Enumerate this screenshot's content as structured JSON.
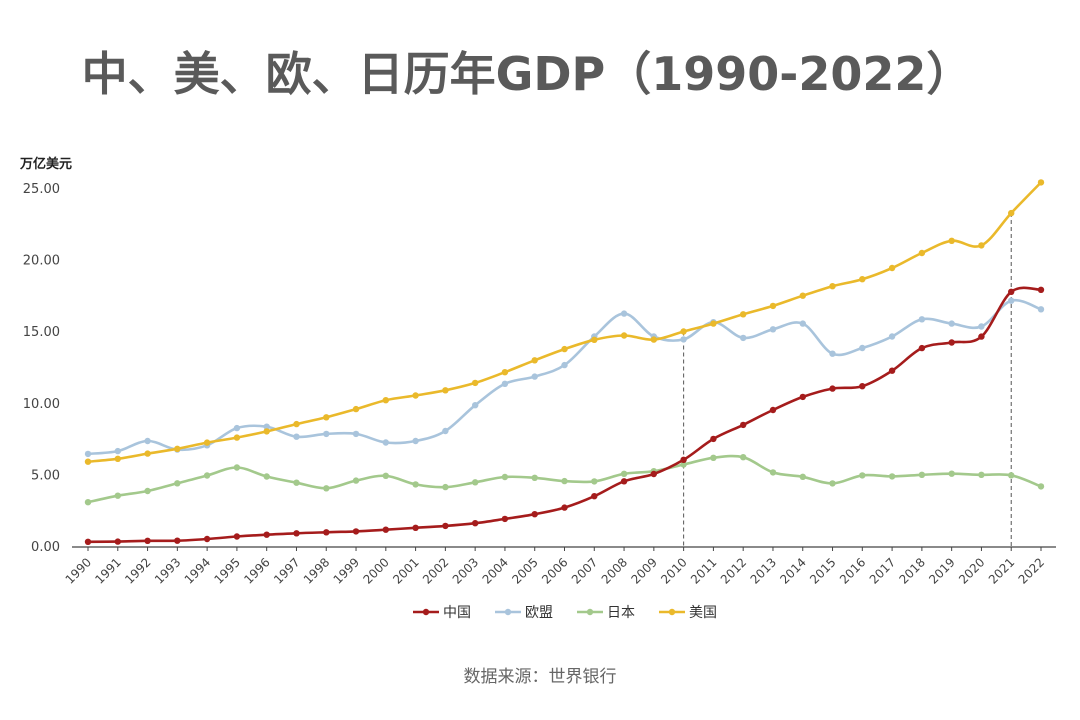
{
  "chart_data": {
    "type": "line",
    "title": "中、美、欧、日历年GDP（1990-2022）",
    "ylabel": "万亿美元",
    "xlabel": "",
    "ylim": [
      0,
      25
    ],
    "yticks": [
      "0.00",
      "5.00",
      "10.00",
      "15.00",
      "20.00",
      "25.00"
    ],
    "grid": false,
    "legend_position": "bottom",
    "source": "数据来源：世界银行",
    "reference_lines": [
      "2010",
      "2021"
    ],
    "categories": [
      "1990",
      "1991",
      "1992",
      "1993",
      "1994",
      "1995",
      "1996",
      "1997",
      "1998",
      "1999",
      "2000",
      "2001",
      "2002",
      "2003",
      "2004",
      "2005",
      "2006",
      "2007",
      "2008",
      "2009",
      "2010",
      "2011",
      "2012",
      "2013",
      "2014",
      "2015",
      "2016",
      "2017",
      "2018",
      "2019",
      "2020",
      "2021",
      "2022"
    ],
    "series": [
      {
        "name": "中国",
        "color": "#a51c1c",
        "values": [
          0.36,
          0.38,
          0.43,
          0.44,
          0.56,
          0.73,
          0.86,
          0.96,
          1.03,
          1.09,
          1.21,
          1.34,
          1.47,
          1.66,
          1.96,
          2.29,
          2.75,
          3.55,
          4.59,
          5.1,
          6.09,
          7.55,
          8.53,
          9.57,
          10.48,
          11.06,
          11.23,
          12.31,
          13.89,
          14.28,
          14.69,
          17.82,
          17.96
        ]
      },
      {
        "name": "欧盟",
        "color": "#a9c4dc",
        "values": [
          6.5,
          6.7,
          7.4,
          6.8,
          7.1,
          8.3,
          8.4,
          7.7,
          7.9,
          7.9,
          7.3,
          7.4,
          8.1,
          9.9,
          11.4,
          11.9,
          12.7,
          14.7,
          16.3,
          14.7,
          14.5,
          15.7,
          14.6,
          15.2,
          15.6,
          13.5,
          13.9,
          14.7,
          15.9,
          15.6,
          15.4,
          17.2,
          16.6
        ]
      },
      {
        "name": "日本",
        "color": "#a3c98c",
        "values": [
          3.13,
          3.58,
          3.91,
          4.45,
          4.99,
          5.55,
          4.92,
          4.49,
          4.1,
          4.64,
          4.97,
          4.37,
          4.18,
          4.52,
          4.89,
          4.83,
          4.6,
          4.58,
          5.11,
          5.29,
          5.76,
          6.23,
          6.27,
          5.21,
          4.9,
          4.44,
          5.0,
          4.93,
          5.04,
          5.12,
          5.04,
          5.01,
          4.23
        ]
      },
      {
        "name": "美国",
        "color": "#eab92b",
        "values": [
          5.96,
          6.16,
          6.52,
          6.86,
          7.29,
          7.64,
          8.07,
          8.58,
          9.06,
          9.63,
          10.25,
          10.58,
          10.94,
          11.46,
          12.21,
          13.04,
          13.82,
          14.47,
          14.77,
          14.48,
          15.05,
          15.6,
          16.25,
          16.84,
          17.55,
          18.21,
          18.7,
          19.48,
          20.53,
          21.38,
          21.06,
          23.32,
          25.46
        ]
      }
    ]
  }
}
